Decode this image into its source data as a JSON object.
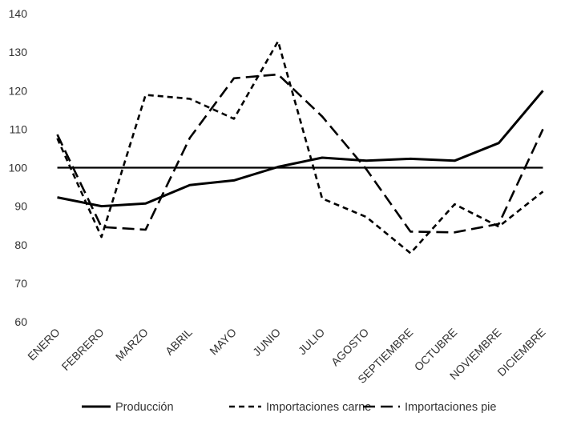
{
  "chart_data": {
    "type": "line",
    "categories": [
      "ENERO",
      "FEBRERO",
      "MARZO",
      "ABRIL",
      "MAYO",
      "JUNIO",
      "JULIO",
      "AGOSTO",
      "SEPTIEMBRE",
      "OCTUBRE",
      "NOVIEMBRE",
      "DICIEMBRE"
    ],
    "ylim": [
      60,
      140
    ],
    "yticks": [
      60,
      70,
      80,
      90,
      100,
      110,
      120,
      130,
      140
    ],
    "grid": false,
    "legend_position": "bottom",
    "reference_line": 100,
    "series": [
      {
        "name": "Producción",
        "style": "solid",
        "values": [
          92.3,
          90.0,
          90.7,
          95.5,
          96.7,
          100.2,
          102.6,
          101.8,
          102.3,
          101.8,
          106.4,
          120.0
        ]
      },
      {
        "name": "Importaciones carne",
        "style": "short-dash",
        "values": [
          107.6,
          82.0,
          118.9,
          117.9,
          112.7,
          132.8,
          92.0,
          87.2,
          77.8,
          90.5,
          84.7,
          93.8
        ]
      },
      {
        "name": "Importaciones pie",
        "style": "long-dash",
        "values": [
          108.6,
          84.6,
          83.9,
          107.7,
          123.2,
          124.2,
          113.3,
          99.6,
          83.4,
          83.2,
          85.4,
          110.0
        ]
      }
    ]
  }
}
